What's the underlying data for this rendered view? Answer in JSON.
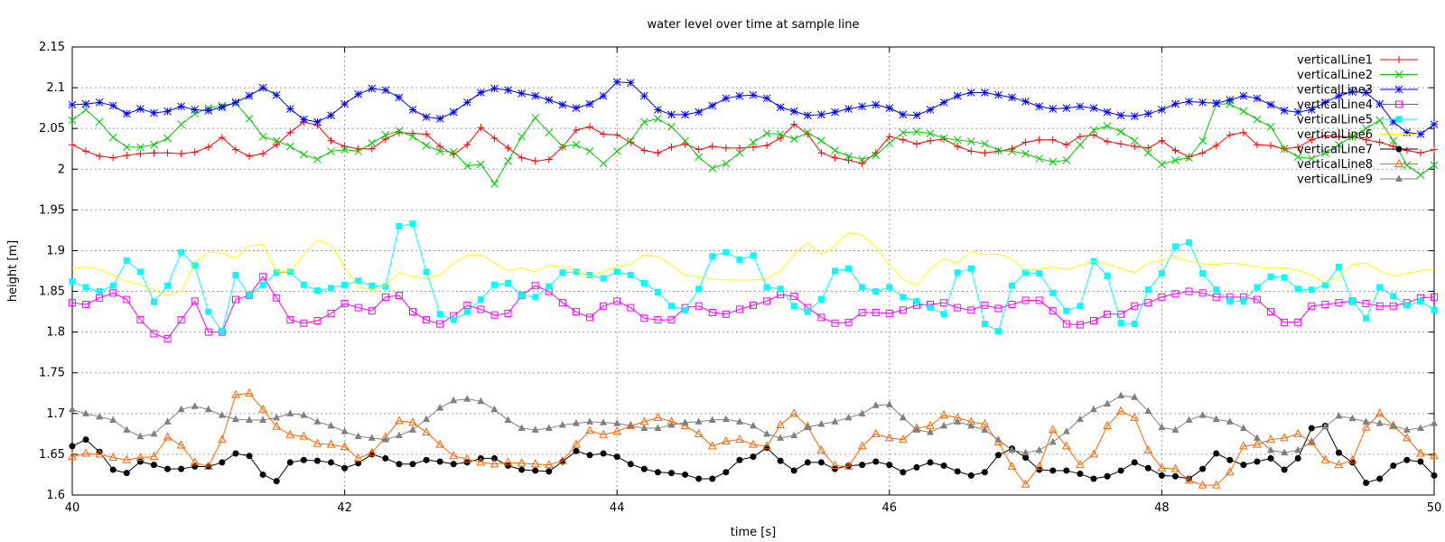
{
  "chart_data": {
    "type": "line",
    "title": "water level over time at sample line",
    "xlabel": "time [s]",
    "ylabel": "height [m]",
    "xlim": [
      40,
      50
    ],
    "ylim": [
      1.6,
      2.15
    ],
    "xticks": [
      40,
      42,
      44,
      46,
      48,
      50
    ],
    "xtick_labels": [
      "40",
      "42",
      "44",
      "46",
      "48",
      "50"
    ],
    "yticks": [
      1.6,
      1.65,
      1.7,
      1.75,
      1.8,
      1.85,
      1.9,
      1.95,
      2,
      2.05,
      2.1,
      2.15
    ],
    "ytick_labels": [
      "1.6",
      "1.65",
      "1.7",
      "1.75",
      "1.8",
      "1.85",
      "1.9",
      "1.95",
      "2",
      "2.05",
      "2.1",
      "2.15"
    ],
    "grid": true,
    "legend_position": "top-right",
    "x_step": 0.1,
    "series": [
      {
        "name": "verticalLine1",
        "color": "#ff0000",
        "marker": "plus",
        "values": [
          2.03,
          2.022,
          2.016,
          2.014,
          2.017,
          2.019,
          2.02,
          2.02,
          2.019,
          2.021,
          2.027,
          2.039,
          2.024,
          2.016,
          2.019,
          2.03,
          2.045,
          2.058,
          2.054,
          2.035,
          2.028,
          2.025,
          2.025,
          2.037,
          2.045,
          2.044,
          2.043,
          2.028,
          2.018,
          2.03,
          2.051,
          2.038,
          2.026,
          2.014,
          2.01,
          2.012,
          2.027,
          2.048,
          2.052,
          2.043,
          2.042,
          2.033,
          2.023,
          2.02,
          2.027,
          2.031,
          2.024,
          2.028,
          2.026,
          2.026,
          2.027,
          2.029,
          2.038,
          2.055,
          2.043,
          2.02,
          2.014,
          2.011,
          2.007,
          2.02,
          2.04,
          2.036,
          2.031,
          2.035,
          2.037,
          2.028,
          2.022,
          2.02,
          2.022,
          2.025,
          2.033,
          2.036,
          2.036,
          2.03,
          2.04,
          2.042,
          2.034,
          2.031,
          2.028,
          2.026,
          2.035,
          2.023,
          2.015,
          2.02,
          2.029,
          2.042,
          2.045,
          2.03,
          2.029,
          2.025,
          2.027,
          2.036,
          2.041,
          2.04,
          2.04,
          2.036,
          2.033,
          2.028,
          2.023,
          2.02,
          2.024
        ]
      },
      {
        "name": "verticalLine2",
        "color": "#00cc00",
        "marker": "cross",
        "values": [
          2.06,
          2.073,
          2.058,
          2.039,
          2.027,
          2.027,
          2.03,
          2.038,
          2.055,
          2.068,
          2.075,
          2.078,
          2.081,
          2.062,
          2.04,
          2.035,
          2.028,
          2.018,
          2.012,
          2.022,
          2.024,
          2.022,
          2.032,
          2.042,
          2.047,
          2.04,
          2.029,
          2.022,
          2.021,
          2.004,
          2.006,
          1.982,
          2.01,
          2.04,
          2.063,
          2.045,
          2.028,
          2.03,
          2.022,
          2.007,
          2.022,
          2.035,
          2.058,
          2.062,
          2.052,
          2.035,
          2.015,
          2.001,
          2.007,
          2.02,
          2.033,
          2.044,
          2.043,
          2.037,
          2.045,
          2.035,
          2.023,
          2.016,
          2.012,
          2.017,
          2.032,
          2.045,
          2.046,
          2.044,
          2.038,
          2.036,
          2.034,
          2.031,
          2.023,
          2.022,
          2.019,
          2.013,
          2.009,
          2.011,
          2.03,
          2.048,
          2.053,
          2.046,
          2.035,
          2.02,
          2.006,
          2.011,
          2.014,
          2.035,
          2.08,
          2.08,
          2.071,
          2.061,
          2.052,
          2.025,
          2.015,
          2.013,
          2.02,
          2.03,
          2.04,
          2.05,
          2.06,
          2.035,
          2.005,
          1.993,
          2.005
        ]
      },
      {
        "name": "verticalLine3",
        "color": "#0000ff",
        "marker": "star",
        "values": [
          2.079,
          2.08,
          2.082,
          2.078,
          2.068,
          2.074,
          2.069,
          2.071,
          2.077,
          2.073,
          2.072,
          2.076,
          2.082,
          2.09,
          2.1,
          2.091,
          2.074,
          2.061,
          2.058,
          2.066,
          2.08,
          2.092,
          2.099,
          2.097,
          2.088,
          2.073,
          2.064,
          2.062,
          2.07,
          2.082,
          2.094,
          2.099,
          2.097,
          2.093,
          2.09,
          2.085,
          2.079,
          2.075,
          2.08,
          2.09,
          2.107,
          2.106,
          2.09,
          2.073,
          2.067,
          2.067,
          2.07,
          2.078,
          2.087,
          2.09,
          2.091,
          2.087,
          2.076,
          2.071,
          2.066,
          2.067,
          2.07,
          2.074,
          2.077,
          2.079,
          2.075,
          2.067,
          2.066,
          2.073,
          2.082,
          2.09,
          2.094,
          2.094,
          2.091,
          2.088,
          2.083,
          2.077,
          2.074,
          2.075,
          2.077,
          2.075,
          2.07,
          2.066,
          2.065,
          2.068,
          2.073,
          2.08,
          2.083,
          2.082,
          2.081,
          2.085,
          2.09,
          2.087,
          2.079,
          2.072,
          2.07,
          2.073,
          2.082,
          2.09,
          2.095,
          2.094,
          2.08,
          2.058,
          2.045,
          2.043,
          2.055
        ]
      },
      {
        "name": "verticalLine4",
        "color": "#ff00ff",
        "marker": "square",
        "values": [
          1.836,
          1.834,
          1.842,
          1.848,
          1.84,
          1.815,
          1.798,
          1.792,
          1.815,
          1.838,
          1.8,
          1.8,
          1.84,
          1.845,
          1.868,
          1.842,
          1.815,
          1.811,
          1.814,
          1.823,
          1.835,
          1.83,
          1.826,
          1.843,
          1.845,
          1.825,
          1.815,
          1.81,
          1.82,
          1.833,
          1.828,
          1.821,
          1.823,
          1.845,
          1.857,
          1.85,
          1.836,
          1.825,
          1.818,
          1.832,
          1.838,
          1.83,
          1.817,
          1.815,
          1.815,
          1.83,
          1.832,
          1.824,
          1.822,
          1.828,
          1.833,
          1.838,
          1.846,
          1.844,
          1.83,
          1.818,
          1.811,
          1.812,
          1.824,
          1.824,
          1.823,
          1.827,
          1.833,
          1.834,
          1.836,
          1.83,
          1.827,
          1.833,
          1.829,
          1.834,
          1.839,
          1.839,
          1.826,
          1.81,
          1.809,
          1.814,
          1.822,
          1.822,
          1.832,
          1.836,
          1.843,
          1.847,
          1.85,
          1.848,
          1.843,
          1.843,
          1.843,
          1.84,
          1.825,
          1.812,
          1.812,
          1.832,
          1.834,
          1.836,
          1.838,
          1.835,
          1.832,
          1.832,
          1.836,
          1.842,
          1.843
        ]
      },
      {
        "name": "verticalLine5",
        "color": "#00ffff",
        "marker": "filled-square",
        "values": [
          1.862,
          1.855,
          1.85,
          1.857,
          1.888,
          1.874,
          1.837,
          1.857,
          1.898,
          1.882,
          1.825,
          1.801,
          1.87,
          1.845,
          1.858,
          1.873,
          1.874,
          1.858,
          1.851,
          1.854,
          1.858,
          1.863,
          1.857,
          1.856,
          1.93,
          1.933,
          1.874,
          1.822,
          1.815,
          1.825,
          1.84,
          1.858,
          1.86,
          1.845,
          1.843,
          1.856,
          1.873,
          1.874,
          1.87,
          1.866,
          1.874,
          1.87,
          1.86,
          1.849,
          1.832,
          1.827,
          1.853,
          1.893,
          1.898,
          1.889,
          1.894,
          1.855,
          1.853,
          1.832,
          1.825,
          1.84,
          1.875,
          1.878,
          1.855,
          1.85,
          1.855,
          1.843,
          1.838,
          1.83,
          1.822,
          1.873,
          1.878,
          1.81,
          1.801,
          1.857,
          1.873,
          1.872,
          1.848,
          1.826,
          1.832,
          1.887,
          1.869,
          1.811,
          1.81,
          1.852,
          1.872,
          1.905,
          1.91,
          1.872,
          1.852,
          1.838,
          1.838,
          1.855,
          1.868,
          1.867,
          1.853,
          1.852,
          1.858,
          1.88,
          1.838,
          1.817,
          1.855,
          1.844,
          1.833,
          1.838,
          1.827
        ]
      },
      {
        "name": "verticalLine6",
        "color": "#ffff00",
        "marker": "none",
        "values": [
          1.878,
          1.88,
          1.877,
          1.87,
          1.862,
          1.858,
          1.852,
          1.845,
          1.85,
          1.885,
          1.898,
          1.897,
          1.891,
          1.906,
          1.908,
          1.874,
          1.875,
          1.895,
          1.913,
          1.907,
          1.88,
          1.855,
          1.852,
          1.857,
          1.873,
          1.868,
          1.866,
          1.87,
          1.885,
          1.894,
          1.895,
          1.885,
          1.875,
          1.879,
          1.874,
          1.882,
          1.88,
          1.875,
          1.868,
          1.874,
          1.88,
          1.883,
          1.895,
          1.893,
          1.882,
          1.87,
          1.868,
          1.865,
          1.864,
          1.864,
          1.864,
          1.866,
          1.875,
          1.895,
          1.91,
          1.895,
          1.906,
          1.922,
          1.919,
          1.905,
          1.882,
          1.865,
          1.857,
          1.878,
          1.89,
          1.885,
          1.9,
          1.895,
          1.896,
          1.89,
          1.875,
          1.878,
          1.88,
          1.877,
          1.882,
          1.887,
          1.883,
          1.878,
          1.873,
          1.885,
          1.888,
          1.892,
          1.887,
          1.884,
          1.883,
          1.885,
          1.883,
          1.88,
          1.878,
          1.879,
          1.876,
          1.87,
          1.86,
          1.868,
          1.883,
          1.885,
          1.875,
          1.869,
          1.872,
          1.875,
          1.878
        ]
      },
      {
        "name": "verticalLine7",
        "color": "#000000",
        "marker": "circle",
        "values": [
          1.66,
          1.668,
          1.653,
          1.631,
          1.627,
          1.641,
          1.637,
          1.632,
          1.632,
          1.635,
          1.635,
          1.64,
          1.651,
          1.648,
          1.625,
          1.617,
          1.64,
          1.643,
          1.642,
          1.64,
          1.633,
          1.639,
          1.65,
          1.645,
          1.638,
          1.638,
          1.643,
          1.641,
          1.638,
          1.64,
          1.645,
          1.645,
          1.636,
          1.631,
          1.63,
          1.629,
          1.641,
          1.654,
          1.649,
          1.651,
          1.647,
          1.638,
          1.632,
          1.628,
          1.627,
          1.625,
          1.62,
          1.62,
          1.628,
          1.643,
          1.647,
          1.658,
          1.642,
          1.63,
          1.64,
          1.64,
          1.632,
          1.636,
          1.637,
          1.641,
          1.637,
          1.628,
          1.634,
          1.64,
          1.636,
          1.629,
          1.624,
          1.628,
          1.649,
          1.657,
          1.646,
          1.631,
          1.63,
          1.63,
          1.626,
          1.62,
          1.623,
          1.63,
          1.64,
          1.633,
          1.624,
          1.623,
          1.62,
          1.632,
          1.651,
          1.643,
          1.637,
          1.641,
          1.645,
          1.631,
          1.645,
          1.682,
          1.685,
          1.652,
          1.64,
          1.615,
          1.62,
          1.636,
          1.643,
          1.641,
          1.624
        ]
      },
      {
        "name": "verticalLine8",
        "color": "#ff6600",
        "marker": "triangle-open",
        "values": [
          1.647,
          1.651,
          1.65,
          1.646,
          1.643,
          1.646,
          1.647,
          1.671,
          1.661,
          1.64,
          1.635,
          1.668,
          1.723,
          1.725,
          1.705,
          1.684,
          1.674,
          1.672,
          1.663,
          1.662,
          1.659,
          1.645,
          1.652,
          1.671,
          1.691,
          1.689,
          1.677,
          1.662,
          1.648,
          1.644,
          1.64,
          1.638,
          1.64,
          1.639,
          1.638,
          1.637,
          1.642,
          1.662,
          1.679,
          1.674,
          1.678,
          1.685,
          1.69,
          1.695,
          1.69,
          1.685,
          1.675,
          1.66,
          1.666,
          1.668,
          1.662,
          1.66,
          1.686,
          1.7,
          1.684,
          1.655,
          1.636,
          1.635,
          1.66,
          1.675,
          1.67,
          1.668,
          1.682,
          1.685,
          1.698,
          1.695,
          1.69,
          1.687,
          1.665,
          1.635,
          1.613,
          1.635,
          1.68,
          1.66,
          1.637,
          1.65,
          1.685,
          1.703,
          1.695,
          1.655,
          1.633,
          1.632,
          1.618,
          1.612,
          1.612,
          1.628,
          1.66,
          1.662,
          1.668,
          1.67,
          1.675,
          1.665,
          1.643,
          1.637,
          1.643,
          1.683,
          1.7,
          1.685,
          1.67,
          1.651,
          1.648
        ]
      },
      {
        "name": "verticalLine9",
        "color": "#808080",
        "marker": "triangle-filled",
        "values": [
          1.705,
          1.7,
          1.696,
          1.692,
          1.68,
          1.672,
          1.675,
          1.69,
          1.705,
          1.709,
          1.705,
          1.698,
          1.693,
          1.692,
          1.692,
          1.695,
          1.7,
          1.698,
          1.69,
          1.685,
          1.678,
          1.672,
          1.67,
          1.668,
          1.673,
          1.68,
          1.693,
          1.707,
          1.716,
          1.718,
          1.715,
          1.705,
          1.692,
          1.682,
          1.68,
          1.682,
          1.686,
          1.688,
          1.69,
          1.689,
          1.688,
          1.685,
          1.682,
          1.682,
          1.686,
          1.689,
          1.69,
          1.692,
          1.693,
          1.69,
          1.685,
          1.675,
          1.67,
          1.673,
          1.683,
          1.687,
          1.69,
          1.695,
          1.7,
          1.71,
          1.711,
          1.695,
          1.68,
          1.677,
          1.685,
          1.69,
          1.685,
          1.68,
          1.668,
          1.655,
          1.652,
          1.655,
          1.665,
          1.678,
          1.693,
          1.705,
          1.712,
          1.722,
          1.72,
          1.703,
          1.683,
          1.68,
          1.692,
          1.698,
          1.693,
          1.69,
          1.682,
          1.67,
          1.655,
          1.652,
          1.655,
          1.665,
          1.684,
          1.697,
          1.694,
          1.69,
          1.688,
          1.685,
          1.68,
          1.682,
          1.688
        ]
      }
    ]
  }
}
